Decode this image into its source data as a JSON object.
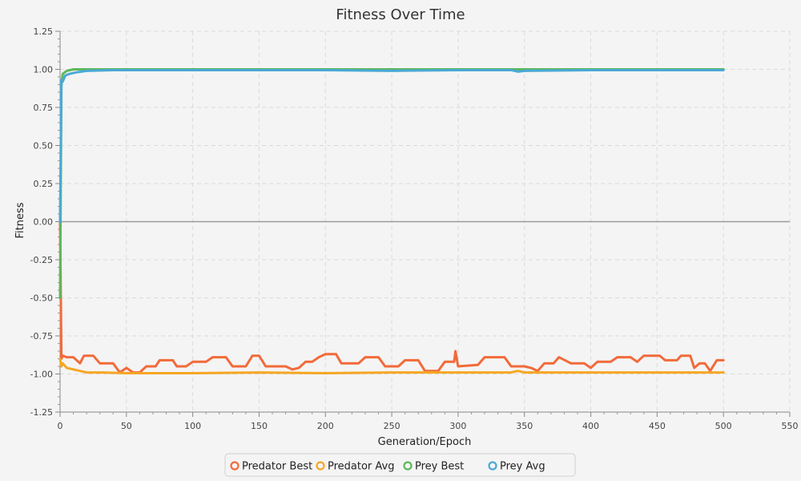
{
  "chart_data": {
    "type": "line",
    "title": "Fitness Over Time",
    "xlabel": "Generation/Epoch",
    "ylabel": "Fitness",
    "xlim": [
      0,
      550
    ],
    "ylim": [
      -1.25,
      1.25
    ],
    "xticks": [
      0,
      50,
      100,
      150,
      200,
      250,
      300,
      350,
      400,
      450,
      500,
      550
    ],
    "yticks": [
      1.25,
      1.0,
      0.75,
      0.5,
      0.25,
      0.0,
      -0.25,
      -0.5,
      -0.75,
      -1.0,
      -1.25
    ],
    "xtick_labels": [
      "0",
      "50",
      "100",
      "150",
      "200",
      "250",
      "300",
      "350",
      "400",
      "450",
      "500",
      "550"
    ],
    "ytick_labels": [
      "1.25",
      "1.00",
      "0.75",
      "0.50",
      "0.25",
      "0.00",
      "-0.25",
      "-0.50",
      "-0.75",
      "-1.00",
      "-1.25"
    ],
    "grid": true,
    "legend_position": "bottom-center",
    "series": [
      {
        "name": "Predator Best",
        "color": "#f26a3a",
        "points": [
          [
            0,
            0.0
          ],
          [
            1,
            -0.9
          ],
          [
            2,
            -0.88
          ],
          [
            5,
            -0.89
          ],
          [
            10,
            -0.89
          ],
          [
            15,
            -0.93
          ],
          [
            18,
            -0.88
          ],
          [
            25,
            -0.88
          ],
          [
            30,
            -0.93
          ],
          [
            40,
            -0.93
          ],
          [
            45,
            -0.99
          ],
          [
            50,
            -0.96
          ],
          [
            55,
            -0.99
          ],
          [
            60,
            -0.99
          ],
          [
            65,
            -0.95
          ],
          [
            72,
            -0.95
          ],
          [
            75,
            -0.91
          ],
          [
            85,
            -0.91
          ],
          [
            88,
            -0.95
          ],
          [
            95,
            -0.95
          ],
          [
            100,
            -0.92
          ],
          [
            110,
            -0.92
          ],
          [
            115,
            -0.89
          ],
          [
            125,
            -0.89
          ],
          [
            130,
            -0.95
          ],
          [
            140,
            -0.95
          ],
          [
            145,
            -0.88
          ],
          [
            150,
            -0.88
          ],
          [
            155,
            -0.95
          ],
          [
            170,
            -0.95
          ],
          [
            175,
            -0.97
          ],
          [
            180,
            -0.96
          ],
          [
            185,
            -0.92
          ],
          [
            190,
            -0.92
          ],
          [
            195,
            -0.89
          ],
          [
            200,
            -0.87
          ],
          [
            208,
            -0.87
          ],
          [
            212,
            -0.93
          ],
          [
            225,
            -0.93
          ],
          [
            230,
            -0.89
          ],
          [
            240,
            -0.89
          ],
          [
            245,
            -0.95
          ],
          [
            255,
            -0.95
          ],
          [
            260,
            -0.91
          ],
          [
            270,
            -0.91
          ],
          [
            275,
            -0.98
          ],
          [
            285,
            -0.98
          ],
          [
            290,
            -0.92
          ],
          [
            297,
            -0.92
          ],
          [
            298,
            -0.85
          ],
          [
            300,
            -0.95
          ],
          [
            315,
            -0.94
          ],
          [
            320,
            -0.89
          ],
          [
            335,
            -0.89
          ],
          [
            340,
            -0.95
          ],
          [
            350,
            -0.95
          ],
          [
            355,
            -0.96
          ],
          [
            360,
            -0.98
          ],
          [
            365,
            -0.93
          ],
          [
            372,
            -0.93
          ],
          [
            376,
            -0.89
          ],
          [
            385,
            -0.93
          ],
          [
            395,
            -0.93
          ],
          [
            400,
            -0.96
          ],
          [
            405,
            -0.92
          ],
          [
            415,
            -0.92
          ],
          [
            420,
            -0.89
          ],
          [
            430,
            -0.89
          ],
          [
            435,
            -0.92
          ],
          [
            440,
            -0.88
          ],
          [
            452,
            -0.88
          ],
          [
            456,
            -0.91
          ],
          [
            465,
            -0.91
          ],
          [
            468,
            -0.88
          ],
          [
            475,
            -0.88
          ],
          [
            478,
            -0.96
          ],
          [
            482,
            -0.93
          ],
          [
            486,
            -0.93
          ],
          [
            490,
            -0.98
          ],
          [
            495,
            -0.91
          ],
          [
            500,
            -0.91
          ]
        ]
      },
      {
        "name": "Predator Avg",
        "color": "#f6a623",
        "points": [
          [
            0,
            -0.9
          ],
          [
            1,
            -0.95
          ],
          [
            2,
            -0.93
          ],
          [
            5,
            -0.96
          ],
          [
            10,
            -0.97
          ],
          [
            15,
            -0.98
          ],
          [
            20,
            -0.99
          ],
          [
            30,
            -0.99
          ],
          [
            50,
            -0.995
          ],
          [
            100,
            -0.995
          ],
          [
            150,
            -0.99
          ],
          [
            200,
            -0.995
          ],
          [
            250,
            -0.99
          ],
          [
            300,
            -0.99
          ],
          [
            340,
            -0.99
          ],
          [
            345,
            -0.98
          ],
          [
            350,
            -0.99
          ],
          [
            400,
            -0.99
          ],
          [
            450,
            -0.99
          ],
          [
            500,
            -0.99
          ]
        ]
      },
      {
        "name": "Prey Best",
        "color": "#5cb85c",
        "points": [
          [
            0,
            -0.5
          ],
          [
            1,
            0.9
          ],
          [
            2,
            0.97
          ],
          [
            5,
            0.99
          ],
          [
            10,
            1.0
          ],
          [
            50,
            1.0
          ],
          [
            100,
            1.0
          ],
          [
            150,
            1.0
          ],
          [
            200,
            1.0
          ],
          [
            250,
            1.0
          ],
          [
            300,
            1.0
          ],
          [
            350,
            1.0
          ],
          [
            400,
            1.0
          ],
          [
            450,
            1.0
          ],
          [
            500,
            1.0
          ]
        ]
      },
      {
        "name": "Prey Avg",
        "color": "#4aa9d6",
        "points": [
          [
            0,
            0.0
          ],
          [
            1,
            0.93
          ],
          [
            2,
            0.92
          ],
          [
            4,
            0.96
          ],
          [
            7,
            0.97
          ],
          [
            12,
            0.98
          ],
          [
            20,
            0.99
          ],
          [
            40,
            0.995
          ],
          [
            80,
            0.995
          ],
          [
            150,
            0.995
          ],
          [
            200,
            0.995
          ],
          [
            250,
            0.99
          ],
          [
            300,
            0.995
          ],
          [
            340,
            0.995
          ],
          [
            345,
            0.985
          ],
          [
            350,
            0.99
          ],
          [
            400,
            0.995
          ],
          [
            450,
            0.995
          ],
          [
            500,
            0.995
          ]
        ]
      }
    ]
  }
}
